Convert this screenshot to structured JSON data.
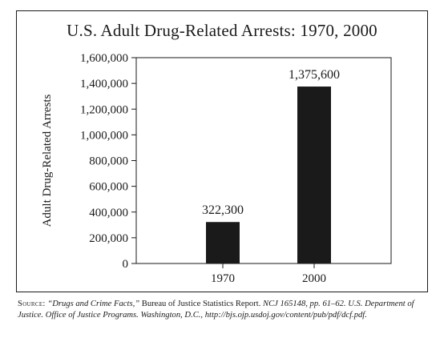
{
  "chart_data": {
    "type": "bar",
    "title": "U.S. Adult Drug-Related Arrests: 1970, 2000",
    "ylabel": "Adult Drug-Related Arrests",
    "xlabel": "",
    "categories": [
      "1970",
      "2000"
    ],
    "values": [
      322300,
      1375600
    ],
    "data_labels": [
      "322,300",
      "1,375,600"
    ],
    "ylim": [
      0,
      1600000
    ],
    "yticks": [
      0,
      200000,
      400000,
      600000,
      800000,
      1000000,
      1200000,
      1400000,
      1600000
    ],
    "ytick_labels": [
      "0",
      "200,000",
      "400,000",
      "600,000",
      "800,000",
      "1,000,000",
      "1,200,000",
      "1,400,000",
      "1,600,000"
    ],
    "grid": false,
    "bar_color": "#1a1a1a"
  },
  "source": {
    "label": "Source:",
    "title": "“Drugs and Crime Facts,”",
    "publisher": " Bureau of Justice Statistics Report. ",
    "rest": "NCJ 165148, pp. 61–62. U.S. Department of Justice. Office of Justice Programs. Washington, D.C., http://bjs.ojp.usdoj.gov/content/pub/pdf/dcf.pdf."
  }
}
